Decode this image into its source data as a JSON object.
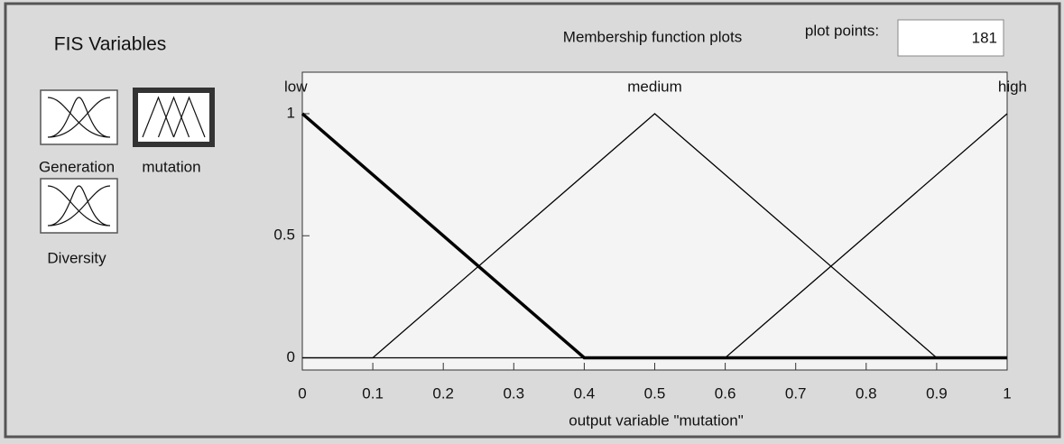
{
  "panel": {
    "title": "FIS Variables",
    "variables": [
      "Generation",
      "mutation",
      "Diversity"
    ],
    "selected": 1
  },
  "plot_points": {
    "label": "plot points:",
    "value": 181
  },
  "chart_data": {
    "type": "line",
    "title": "Membership function plots",
    "x_label": "output variable \"mutation\"",
    "xlim": [
      0,
      1
    ],
    "ylim": [
      -0.05,
      1.17
    ],
    "xticks": [
      0,
      0.1,
      0.2,
      0.3,
      0.4,
      0.5,
      0.6,
      0.7,
      0.8,
      0.9,
      1
    ],
    "yticks": [
      0,
      0.5,
      1
    ],
    "grid": false,
    "selected": 0,
    "series": [
      {
        "name": "low",
        "color": "#000000",
        "x": [
          0,
          0.4,
          1
        ],
        "values": [
          1,
          0,
          0
        ]
      },
      {
        "name": "medium",
        "color": "#000000",
        "x": [
          0,
          0.1,
          0.5,
          0.9,
          1
        ],
        "values": [
          0,
          0,
          1,
          0,
          0
        ]
      },
      {
        "name": "high",
        "color": "#000000",
        "x": [
          0,
          0.6,
          1
        ],
        "values": [
          0,
          0,
          1
        ]
      }
    ]
  }
}
